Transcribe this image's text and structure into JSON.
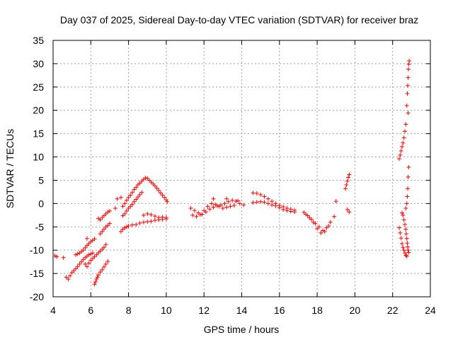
{
  "chart_data": {
    "type": "scatter",
    "title": "Day 037 of 2025, Sidereal Day-to-day VTEC variation (SDTVAR) for receiver braz",
    "xlabel": "GPS time / hours",
    "ylabel": "SDTVAR / TECUs",
    "xlim": [
      4,
      24
    ],
    "ylim": [
      -20,
      35
    ],
    "xticks": [
      4,
      6,
      8,
      10,
      12,
      14,
      16,
      18,
      20,
      22,
      24
    ],
    "yticks": [
      -20,
      -15,
      -10,
      -5,
      0,
      5,
      10,
      15,
      20,
      25,
      30,
      35
    ],
    "grid": true,
    "legend": "none",
    "marker": "plus",
    "color": "#ff0000",
    "series": [
      {
        "points": [
          [
            4.1,
            -11.2
          ],
          [
            4.2,
            -11.4
          ],
          [
            4.55,
            -11.6
          ],
          [
            4.7,
            -15.8
          ],
          [
            4.8,
            -16.2
          ],
          [
            4.9,
            -15.5
          ],
          [
            5.0,
            -14.8
          ],
          [
            5.1,
            -14.4
          ],
          [
            5.2,
            -14.0
          ],
          [
            5.3,
            -13.5
          ],
          [
            5.4,
            -13.0
          ],
          [
            5.5,
            -12.5
          ],
          [
            5.6,
            -12.0
          ],
          [
            5.7,
            -11.6
          ],
          [
            5.8,
            -11.3
          ],
          [
            5.9,
            -11.0
          ],
          [
            6.0,
            -10.8
          ],
          [
            6.1,
            -10.6
          ],
          [
            5.2,
            -11.0
          ],
          [
            5.3,
            -10.8
          ],
          [
            5.4,
            -10.6
          ],
          [
            5.5,
            -10.3
          ],
          [
            5.6,
            -10.0
          ],
          [
            5.7,
            -9.5
          ],
          [
            5.8,
            -9.0
          ],
          [
            5.9,
            -8.6
          ],
          [
            6.0,
            -8.2
          ],
          [
            6.1,
            -7.9
          ],
          [
            6.2,
            -7.6
          ],
          [
            5.8,
            -7.5
          ],
          [
            5.7,
            -13.0
          ],
          [
            5.8,
            -13.5
          ],
          [
            5.9,
            -12.8
          ],
          [
            6.0,
            -12.2
          ],
          [
            6.1,
            -11.8
          ],
          [
            6.2,
            -11.4
          ],
          [
            6.3,
            -11.0
          ],
          [
            6.4,
            -10.6
          ],
          [
            6.5,
            -10.2
          ],
          [
            6.6,
            -9.8
          ],
          [
            6.7,
            -9.4
          ],
          [
            6.8,
            -8.8
          ],
          [
            6.2,
            -17.3
          ],
          [
            6.25,
            -16.8
          ],
          [
            6.3,
            -16.2
          ],
          [
            6.35,
            -15.8
          ],
          [
            6.4,
            -15.3
          ],
          [
            6.5,
            -14.7
          ],
          [
            6.6,
            -14.2
          ],
          [
            6.7,
            -13.6
          ],
          [
            6.8,
            -13.0
          ],
          [
            6.9,
            -12.4
          ],
          [
            6.5,
            -6.5
          ],
          [
            6.6,
            -6.0
          ],
          [
            6.7,
            -5.5
          ],
          [
            6.8,
            -5.0
          ],
          [
            6.9,
            -4.7
          ],
          [
            7.0,
            -4.3
          ],
          [
            6.4,
            -3.2
          ],
          [
            6.5,
            -3.5
          ],
          [
            6.6,
            -3.0
          ],
          [
            6.7,
            -2.6
          ],
          [
            6.8,
            -2.2
          ],
          [
            6.9,
            -1.8
          ],
          [
            7.0,
            -1.6
          ],
          [
            7.3,
            -1.0
          ],
          [
            7.4,
            1.0
          ],
          [
            7.6,
            1.3
          ],
          [
            7.6,
            -6.0
          ],
          [
            7.7,
            -5.5
          ],
          [
            7.8,
            -5.2
          ],
          [
            7.9,
            -5.0
          ],
          [
            8.0,
            -4.8
          ],
          [
            8.2,
            -4.6
          ],
          [
            8.4,
            -4.5
          ],
          [
            8.6,
            -4.2
          ],
          [
            8.8,
            -4.0
          ],
          [
            9.0,
            -3.9
          ],
          [
            9.2,
            -3.8
          ],
          [
            9.4,
            -3.6
          ],
          [
            9.6,
            -3.5
          ],
          [
            9.8,
            -3.4
          ],
          [
            10.0,
            -3.3
          ],
          [
            7.7,
            -2.6
          ],
          [
            7.8,
            -2.2
          ],
          [
            7.9,
            -1.6
          ],
          [
            8.0,
            -1.0
          ],
          [
            8.1,
            -0.6
          ],
          [
            8.2,
            -0.2
          ],
          [
            8.3,
            0.4
          ],
          [
            8.4,
            0.9
          ],
          [
            8.5,
            1.4
          ],
          [
            8.6,
            1.9
          ],
          [
            8.7,
            2.4
          ],
          [
            7.7,
            -0.6
          ],
          [
            7.8,
            0.0
          ],
          [
            7.9,
            0.7
          ],
          [
            8.0,
            1.3
          ],
          [
            8.1,
            1.8
          ],
          [
            8.2,
            2.4
          ],
          [
            8.3,
            3.0
          ],
          [
            8.4,
            3.5
          ],
          [
            8.5,
            4.0
          ],
          [
            8.6,
            4.4
          ],
          [
            8.7,
            4.8
          ],
          [
            8.8,
            5.2
          ],
          [
            8.9,
            5.5
          ],
          [
            9.0,
            5.4
          ],
          [
            9.1,
            5.0
          ],
          [
            9.2,
            4.6
          ],
          [
            9.3,
            4.2
          ],
          [
            9.4,
            3.8
          ],
          [
            9.5,
            3.3
          ],
          [
            9.6,
            2.8
          ],
          [
            9.7,
            2.3
          ],
          [
            9.8,
            1.8
          ],
          [
            9.9,
            1.3
          ],
          [
            10.0,
            0.8
          ],
          [
            10.05,
            0.4
          ],
          [
            8.8,
            -2.5
          ],
          [
            9.0,
            -2.2
          ],
          [
            9.2,
            -2.4
          ],
          [
            9.4,
            -2.7
          ],
          [
            9.6,
            -3.0
          ],
          [
            9.8,
            -2.9
          ],
          [
            10.0,
            -3.0
          ],
          [
            11.3,
            -1.0
          ],
          [
            11.5,
            -1.5
          ],
          [
            11.7,
            -2.0
          ],
          [
            11.9,
            -2.3
          ],
          [
            12.1,
            -1.8
          ],
          [
            12.3,
            -1.2
          ],
          [
            12.5,
            -0.8
          ],
          [
            12.7,
            -0.5
          ],
          [
            12.9,
            -0.3
          ],
          [
            13.1,
            0.0
          ],
          [
            13.3,
            0.4
          ],
          [
            13.5,
            0.7
          ],
          [
            13.7,
            0.5
          ],
          [
            13.9,
            0.0
          ],
          [
            14.1,
            -0.3
          ],
          [
            11.4,
            -2.5
          ],
          [
            11.6,
            -2.8
          ],
          [
            11.8,
            -2.4
          ],
          [
            12.0,
            -1.5
          ],
          [
            12.2,
            -0.6
          ],
          [
            12.4,
            0.0
          ],
          [
            12.6,
            -0.2
          ],
          [
            12.8,
            -0.6
          ],
          [
            13.0,
            -1.0
          ],
          [
            13.2,
            -0.8
          ],
          [
            13.4,
            -0.6
          ],
          [
            13.6,
            -0.4
          ],
          [
            13.8,
            0.6
          ],
          [
            12.5,
            1.0
          ],
          [
            13.2,
            1.0
          ],
          [
            14.6,
            2.3
          ],
          [
            14.8,
            2.2
          ],
          [
            15.0,
            1.9
          ],
          [
            15.2,
            1.5
          ],
          [
            15.4,
            1.0
          ],
          [
            15.6,
            0.5
          ],
          [
            15.8,
            0.0
          ],
          [
            16.0,
            -0.4
          ],
          [
            16.2,
            -0.7
          ],
          [
            16.4,
            -1.0
          ],
          [
            16.6,
            -1.2
          ],
          [
            16.8,
            -1.4
          ],
          [
            14.6,
            0.2
          ],
          [
            14.8,
            0.3
          ],
          [
            15.0,
            0.4
          ],
          [
            15.2,
            0.3
          ],
          [
            15.4,
            0.0
          ],
          [
            15.6,
            -0.3
          ],
          [
            15.8,
            -0.5
          ],
          [
            16.0,
            -0.9
          ],
          [
            16.2,
            -1.3
          ],
          [
            16.4,
            -1.5
          ],
          [
            16.6,
            -1.7
          ],
          [
            16.8,
            -1.8
          ],
          [
            17.3,
            -1.9
          ],
          [
            17.5,
            -2.6
          ],
          [
            17.7,
            -3.4
          ],
          [
            17.9,
            -4.3
          ],
          [
            18.1,
            -5.0
          ],
          [
            18.3,
            -5.8
          ],
          [
            18.5,
            -5.2
          ],
          [
            18.7,
            -4.0
          ],
          [
            18.9,
            -2.8
          ],
          [
            19.0,
            0.5
          ],
          [
            17.4,
            -2.3
          ],
          [
            17.6,
            -3.1
          ],
          [
            17.8,
            -4.0
          ],
          [
            18.0,
            -5.4
          ],
          [
            18.2,
            -6.3
          ],
          [
            18.4,
            -6.0
          ],
          [
            18.6,
            -4.8
          ],
          [
            19.6,
            -1.3
          ],
          [
            19.7,
            -1.8
          ],
          [
            19.5,
            3.2
          ],
          [
            19.55,
            4.0
          ],
          [
            19.6,
            4.8
          ],
          [
            19.65,
            5.6
          ],
          [
            19.7,
            6.2
          ],
          [
            22.35,
            9.6
          ],
          [
            22.4,
            10.4
          ],
          [
            22.45,
            11.3
          ],
          [
            22.5,
            12.2
          ],
          [
            22.55,
            13.0
          ],
          [
            22.6,
            14.1
          ],
          [
            22.65,
            15.5
          ],
          [
            22.7,
            17.0
          ],
          [
            22.75,
            21.0
          ],
          [
            22.78,
            23.6
          ],
          [
            22.8,
            25.3
          ],
          [
            22.82,
            27.0
          ],
          [
            22.84,
            28.8
          ],
          [
            22.86,
            29.9
          ],
          [
            22.88,
            30.6
          ],
          [
            22.82,
            19.4
          ],
          [
            22.85,
            7.8
          ],
          [
            22.82,
            5.7
          ],
          [
            22.8,
            3.2
          ],
          [
            22.78,
            1.5
          ],
          [
            22.75,
            0.0
          ],
          [
            22.7,
            -1.0
          ],
          [
            22.5,
            -2.0
          ],
          [
            22.55,
            -2.5
          ],
          [
            22.6,
            -3.5
          ],
          [
            22.65,
            -4.5
          ],
          [
            22.7,
            -5.5
          ],
          [
            22.72,
            -6.5
          ],
          [
            22.75,
            -7.5
          ],
          [
            22.78,
            -8.5
          ],
          [
            22.8,
            -9.3
          ],
          [
            22.82,
            -10.0
          ],
          [
            22.85,
            -10.5
          ],
          [
            22.35,
            -5.2
          ],
          [
            22.4,
            -6.3
          ],
          [
            22.45,
            -7.4
          ],
          [
            22.5,
            -8.6
          ],
          [
            22.55,
            -9.4
          ],
          [
            22.6,
            -10.0
          ],
          [
            22.65,
            -10.6
          ],
          [
            22.7,
            -11.1
          ],
          [
            22.75,
            -11.3
          ]
        ]
      }
    ]
  }
}
